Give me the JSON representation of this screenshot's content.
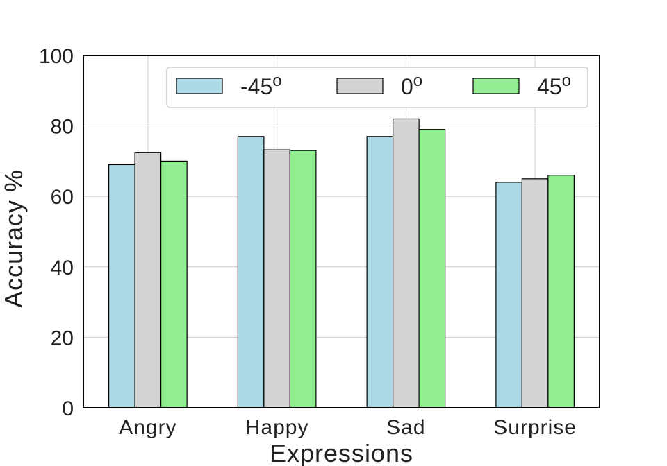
{
  "chart_data": {
    "type": "bar",
    "categories": [
      "Angry",
      "Happy",
      "Sad",
      "Surprise"
    ],
    "series": [
      {
        "name": "-45o",
        "name_base": "-45",
        "name_sup": "o",
        "color": "#add8e6",
        "values": [
          69,
          77,
          77,
          64
        ]
      },
      {
        "name": "0o",
        "name_base": "0",
        "name_sup": "o",
        "color": "#d3d3d3",
        "values": [
          72.5,
          73.2,
          82,
          65
        ]
      },
      {
        "name": "45o",
        "name_base": "45",
        "name_sup": "o",
        "color": "#90ee90",
        "values": [
          70,
          73,
          79,
          66
        ]
      }
    ],
    "xlabel": "Expressions",
    "ylabel": "Accuracy %",
    "ylim": [
      0,
      100
    ],
    "yticks": [
      "0",
      "20",
      "40",
      "60",
      "80",
      "100"
    ],
    "grid": true,
    "legend_position": "top-right"
  }
}
